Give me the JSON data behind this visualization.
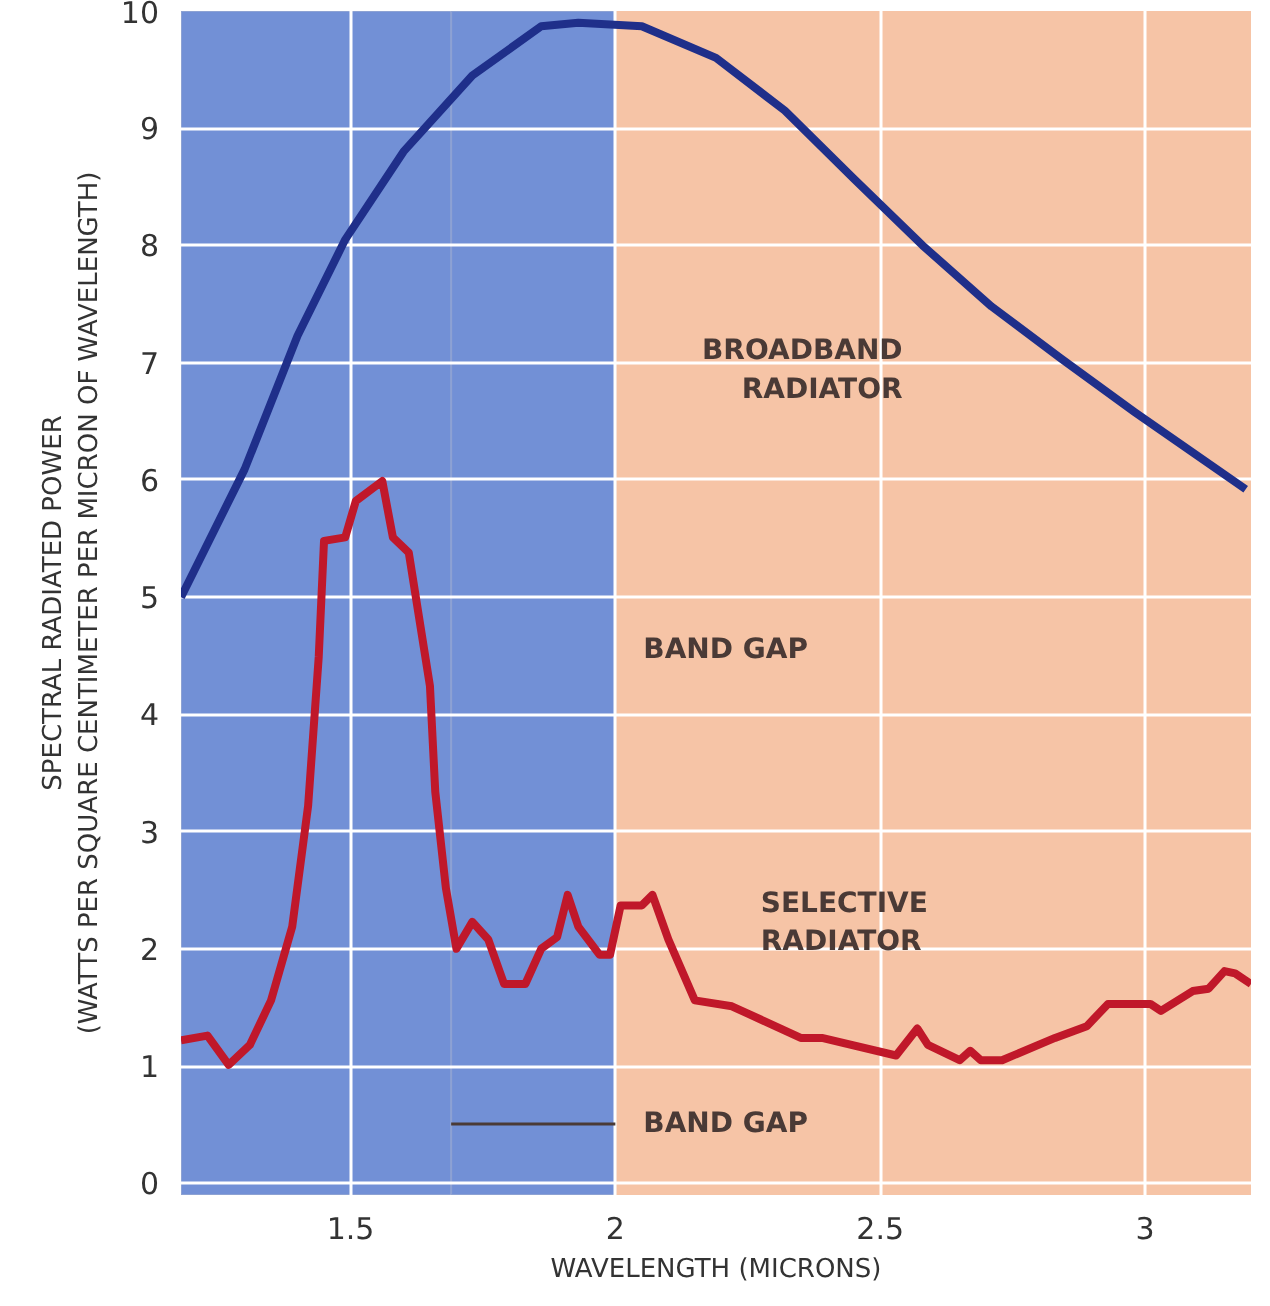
{
  "chart_data": {
    "type": "line",
    "xlabel": "WAVELENGTH (MICRONS)",
    "ylabel": "SPECTRAL RADIATED POWER\n(WATTS PER SQUARE CENTIMETER PER MICRON OF WAVELENGTH)",
    "xlim": [
      1.18,
      3.2
    ],
    "ylim": [
      -0.1,
      10
    ],
    "xticks": [
      1.5,
      2,
      2.5,
      3
    ],
    "yticks": [
      0,
      1,
      2,
      3,
      4,
      5,
      6,
      7,
      8,
      9,
      10
    ],
    "grid": true,
    "line_style": "solid",
    "marker": "none",
    "series": [
      {
        "name": "BROADBAND RADIATOR",
        "color": "#1f2f8a",
        "x": [
          1.18,
          1.3,
          1.4,
          1.49,
          1.6,
          1.73,
          1.86,
          1.93,
          2.05,
          2.19,
          2.32,
          2.45,
          2.58,
          2.71,
          2.84,
          2.98,
          3.19
        ],
        "values": [
          5.0,
          6.09,
          7.23,
          8.05,
          8.8,
          9.45,
          9.87,
          9.9,
          9.87,
          9.6,
          9.15,
          8.57,
          8.0,
          7.48,
          7.04,
          6.58,
          5.92
        ]
      },
      {
        "name": "SELECTIVE RADIATOR",
        "color": "#c0182a",
        "x": [
          1.18,
          1.23,
          1.27,
          1.31,
          1.35,
          1.39,
          1.42,
          1.44,
          1.45,
          1.49,
          1.51,
          1.56,
          1.58,
          1.61,
          1.65,
          1.66,
          1.68,
          1.7,
          1.73,
          1.76,
          1.79,
          1.83,
          1.86,
          1.89,
          1.91,
          1.93,
          1.97,
          1.99,
          2.01,
          2.05,
          2.07,
          2.1,
          2.15,
          2.22,
          2.35,
          2.39,
          2.53,
          2.57,
          2.59,
          2.65,
          2.67,
          2.69,
          2.73,
          2.83,
          2.89,
          2.93,
          3.01,
          3.03,
          3.09,
          3.12,
          3.15,
          3.17,
          3.2
        ],
        "values": [
          1.22,
          1.26,
          1.01,
          1.18,
          1.56,
          2.19,
          3.22,
          4.49,
          5.48,
          5.51,
          5.82,
          5.99,
          5.51,
          5.38,
          4.24,
          3.34,
          2.52,
          2.0,
          2.23,
          2.08,
          1.7,
          1.7,
          2.0,
          2.1,
          2.46,
          2.19,
          1.95,
          1.95,
          2.37,
          2.37,
          2.46,
          2.08,
          1.56,
          1.51,
          1.24,
          1.24,
          1.09,
          1.32,
          1.18,
          1.05,
          1.13,
          1.05,
          1.05,
          1.24,
          1.34,
          1.53,
          1.53,
          1.47,
          1.64,
          1.66,
          1.81,
          1.79,
          1.7
        ]
      }
    ],
    "bands": [
      {
        "axis": "x",
        "from": 1.18,
        "to": 2,
        "color": "#7290d6",
        "label": "BAND GAP"
      },
      {
        "axis": "x",
        "from": 1.69,
        "to": 2,
        "color": "#7290d6",
        "label": "BAND GAP"
      }
    ]
  }
}
